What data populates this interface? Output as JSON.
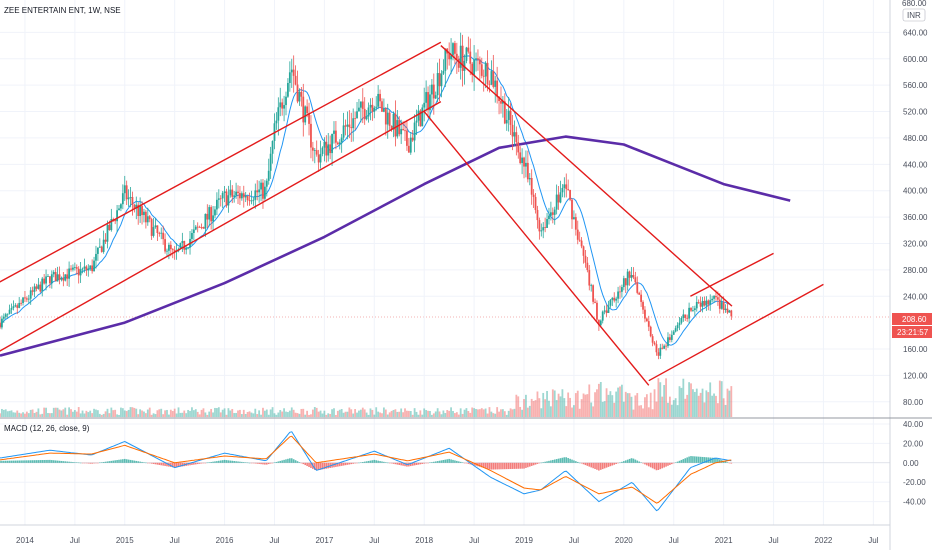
{
  "header": {
    "symbol_line": "ZEE ENTERTAIN ENT, 1W, NSE",
    "currency": "INR",
    "top_price_label": "680.00"
  },
  "colors": {
    "up": "#26a69a",
    "down": "#ef5350",
    "trendline": "#e31b1b",
    "ma_long": "#5b2ca8",
    "ma_short": "#2196f3",
    "macd_line": "#2196f3",
    "signal_line": "#ff6d00",
    "price_badge": "#ef5350"
  },
  "chart_data": [
    {
      "type": "candlestick",
      "title": "ZEE ENTERTAIN ENT, 1W, NSE",
      "currency": "INR",
      "x_range": [
        "2013-10",
        "2022-09"
      ],
      "ylim": [
        60,
        680
      ],
      "y_ticks": [
        "640.00",
        "600.00",
        "560.00",
        "520.00",
        "480.00",
        "440.00",
        "400.00",
        "360.00",
        "320.00",
        "280.00",
        "240.00",
        "208.60",
        "160.00",
        "120.00",
        "80.00"
      ],
      "x_ticks": [
        "2014",
        "Jul",
        "2015",
        "Jul",
        "2016",
        "Jul",
        "2017",
        "Jul",
        "2018",
        "Jul",
        "2019",
        "Jul",
        "2020",
        "Jul",
        "2021",
        "Jul",
        "2022",
        "Jul"
      ],
      "last_price": "208.60",
      "countdown": "23:21:57",
      "price_path": [
        [
          "2013-10",
          200
        ],
        [
          "2014-04",
          268
        ],
        [
          "2014-09",
          282
        ],
        [
          "2015-01",
          395
        ],
        [
          "2015-07",
          300
        ],
        [
          "2016-01",
          390
        ],
        [
          "2016-06",
          400
        ],
        [
          "2016-07",
          490
        ],
        [
          "2016-09",
          590
        ],
        [
          "2016-12",
          450
        ],
        [
          "2017-07",
          540
        ],
        [
          "2017-11",
          470
        ],
        [
          "2018-04",
          610
        ],
        [
          "2018-09",
          580
        ],
        [
          "2019-01",
          440
        ],
        [
          "2019-03",
          340
        ],
        [
          "2019-06",
          410
        ],
        [
          "2019-10",
          200
        ],
        [
          "2020-02",
          280
        ],
        [
          "2020-05",
          150
        ],
        [
          "2020-09",
          220
        ],
        [
          "2020-12",
          235
        ],
        [
          "2021-02",
          208.6
        ]
      ],
      "ma_long": [
        [
          "2013-10",
          150
        ],
        [
          "2015-01",
          200
        ],
        [
          "2016-01",
          260
        ],
        [
          "2017-01",
          330
        ],
        [
          "2018-01",
          410
        ],
        [
          "2018-10",
          465
        ],
        [
          "2019-06",
          482
        ],
        [
          "2020-01",
          470
        ],
        [
          "2020-07",
          440
        ],
        [
          "2021-01",
          410
        ],
        [
          "2021-09",
          385
        ]
      ],
      "trendlines": [
        {
          "from": [
            "2013-09",
            255
          ],
          "to": [
            "2018-03",
            625
          ]
        },
        {
          "from": [
            "2013-09",
            150
          ],
          "to": [
            "2018-03",
            535
          ]
        },
        {
          "from": [
            "2018-03",
            620
          ],
          "to": [
            "2021-02",
            225
          ]
        },
        {
          "from": [
            "2018-01",
            520
          ],
          "to": [
            "2020-04",
            105
          ]
        },
        {
          "from": [
            "2020-09",
            240
          ],
          "to": [
            "2021-07",
            305
          ]
        },
        {
          "from": [
            "2020-04",
            112
          ],
          "to": [
            "2022-01",
            258
          ]
        }
      ]
    },
    {
      "type": "line",
      "title": "MACD (12, 26, close, 9)",
      "ylim": [
        -60,
        40
      ],
      "y_ticks": [
        "40.00",
        "20.00",
        "0.00",
        "-20.00",
        "-40.00"
      ],
      "series": [
        {
          "values_path": [
            [
              "2013-10",
              5
            ],
            [
              "2014-04",
              13
            ],
            [
              "2014-09",
              8
            ],
            [
              "2015-01",
              22
            ],
            [
              "2015-07",
              -5
            ],
            [
              "2016-01",
              10
            ],
            [
              "2016-06",
              2
            ],
            [
              "2016-09",
              33
            ],
            [
              "2016-12",
              -8
            ],
            [
              "2017-07",
              12
            ],
            [
              "2017-11",
              -2
            ],
            [
              "2018-04",
              15
            ],
            [
              "2018-09",
              -15
            ],
            [
              "2019-01",
              -32
            ],
            [
              "2019-03",
              -28
            ],
            [
              "2019-06",
              -8
            ],
            [
              "2019-10",
              -40
            ],
            [
              "2020-02",
              -20
            ],
            [
              "2020-05",
              -50
            ],
            [
              "2020-09",
              -5
            ],
            [
              "2020-12",
              5
            ],
            [
              "2021-02",
              2
            ]
          ]
        },
        {
          "values_path": [
            [
              "2013-10",
              3
            ],
            [
              "2014-04",
              10
            ],
            [
              "2014-09",
              9
            ],
            [
              "2015-01",
              18
            ],
            [
              "2015-07",
              0
            ],
            [
              "2016-01",
              7
            ],
            [
              "2016-06",
              4
            ],
            [
              "2016-09",
              28
            ],
            [
              "2016-12",
              0
            ],
            [
              "2017-07",
              9
            ],
            [
              "2017-11",
              2
            ],
            [
              "2018-04",
              11
            ],
            [
              "2018-09",
              -8
            ],
            [
              "2019-01",
              -26
            ],
            [
              "2019-03",
              -28
            ],
            [
              "2019-06",
              -14
            ],
            [
              "2019-10",
              -32
            ],
            [
              "2020-02",
              -25
            ],
            [
              "2020-05",
              -42
            ],
            [
              "2020-09",
              -12
            ],
            [
              "2020-12",
              0
            ],
            [
              "2021-02",
              3
            ]
          ]
        }
      ]
    }
  ]
}
